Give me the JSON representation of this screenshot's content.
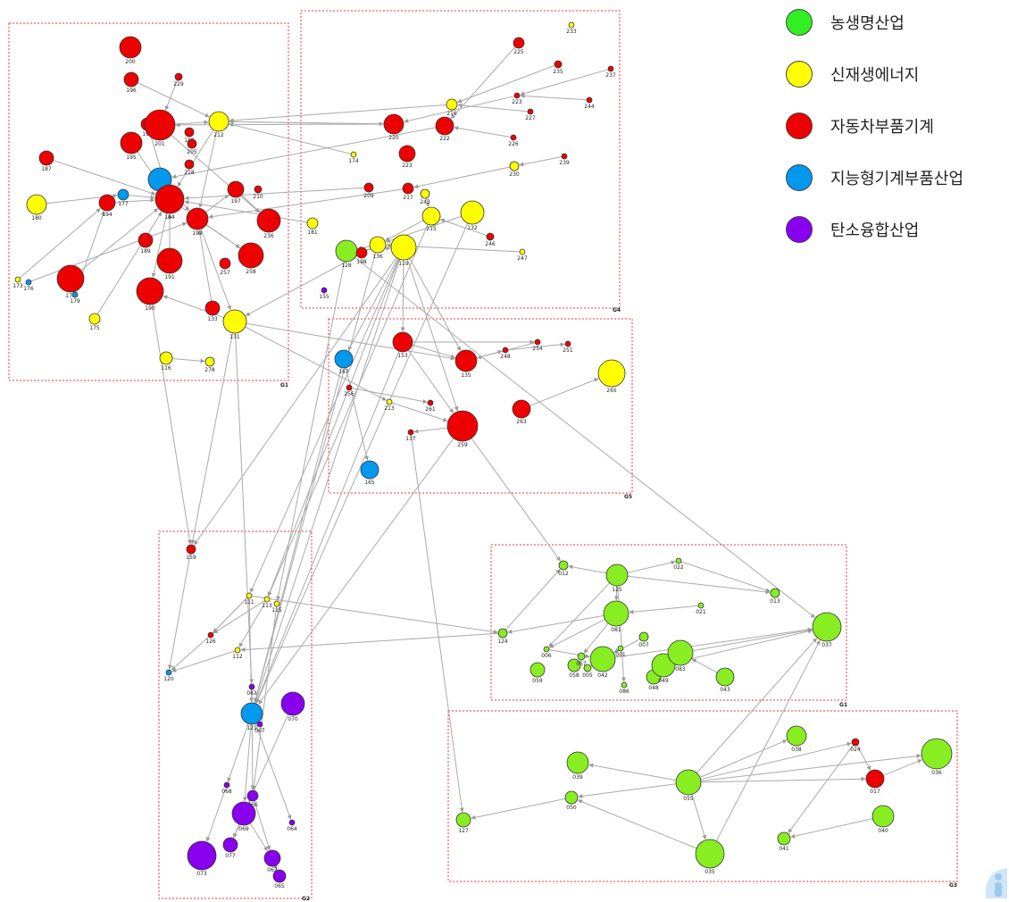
{
  "legend": [
    {
      "label": "농생명산업",
      "color": "#33ee22",
      "icon": "green-circle"
    },
    {
      "label": "신재생에너지",
      "color": "#ffff00",
      "icon": "yellow-circle"
    },
    {
      "label": "자동차부품기계",
      "color": "#ee0000",
      "icon": "red-circle"
    },
    {
      "label": "지능형기계부품산업",
      "color": "#0099ee",
      "icon": "blue-circle"
    },
    {
      "label": "탄소융합산업",
      "color": "#8800ee",
      "icon": "purple-circle"
    }
  ],
  "colors": {
    "agri": "#88ee22",
    "energy": "#ffff00",
    "auto": "#ee0000",
    "machine": "#0099ee",
    "carbon": "#8800ee",
    "edge": "#aaaaaa",
    "group_border": "#ff3333"
  },
  "groups": [
    {
      "label": "G1"
    },
    {
      "label": "G4"
    },
    {
      "label": "G5"
    },
    {
      "label": "G2"
    },
    {
      "label": "G1"
    },
    {
      "label": "G3"
    }
  ],
  "nodes": [
    {
      "id": "200",
      "cat": "auto"
    },
    {
      "id": "196",
      "cat": "auto"
    },
    {
      "id": "229",
      "cat": "auto"
    },
    {
      "id": "193",
      "cat": "auto"
    },
    {
      "id": "201",
      "cat": "auto"
    },
    {
      "id": "212",
      "cat": "energy"
    },
    {
      "id": "195",
      "cat": "auto"
    },
    {
      "id": "188",
      "cat": "auto"
    },
    {
      "id": "205",
      "cat": "auto"
    },
    {
      "id": "187",
      "cat": "auto"
    },
    {
      "id": "204",
      "cat": "machine"
    },
    {
      "id": "218",
      "cat": "auto"
    },
    {
      "id": "180",
      "cat": "energy"
    },
    {
      "id": "194",
      "cat": "auto"
    },
    {
      "id": "177",
      "cat": "machine"
    },
    {
      "id": "184",
      "cat": "auto"
    },
    {
      "id": "192",
      "cat": "auto"
    },
    {
      "id": "197",
      "cat": "auto"
    },
    {
      "id": "210",
      "cat": "auto"
    },
    {
      "id": "236",
      "cat": "auto"
    },
    {
      "id": "189",
      "cat": "auto"
    },
    {
      "id": "191",
      "cat": "auto"
    },
    {
      "id": "257",
      "cat": "auto"
    },
    {
      "id": "258",
      "cat": "auto"
    },
    {
      "id": "173",
      "cat": "energy"
    },
    {
      "id": "176",
      "cat": "machine"
    },
    {
      "id": "178",
      "cat": "auto"
    },
    {
      "id": "179",
      "cat": "machine"
    },
    {
      "id": "175",
      "cat": "energy"
    },
    {
      "id": "190",
      "cat": "auto"
    },
    {
      "id": "133",
      "cat": "auto"
    },
    {
      "id": "131",
      "cat": "energy"
    },
    {
      "id": "116",
      "cat": "energy"
    },
    {
      "id": "278",
      "cat": "energy"
    },
    {
      "id": "233",
      "cat": "energy"
    },
    {
      "id": "225",
      "cat": "auto"
    },
    {
      "id": "235",
      "cat": "auto"
    },
    {
      "id": "237",
      "cat": "auto"
    },
    {
      "id": "223",
      "cat": "auto"
    },
    {
      "id": "244",
      "cat": "auto"
    },
    {
      "id": "227",
      "cat": "auto"
    },
    {
      "id": "216",
      "cat": "energy"
    },
    {
      "id": "220",
      "cat": "auto"
    },
    {
      "id": "222",
      "cat": "auto"
    },
    {
      "id": "226",
      "cat": "auto"
    },
    {
      "id": "239",
      "cat": "auto"
    },
    {
      "id": "174",
      "cat": "energy"
    },
    {
      "id": "223b",
      "label": "223",
      "cat": "auto"
    },
    {
      "id": "230",
      "cat": "energy"
    },
    {
      "id": "209",
      "cat": "auto"
    },
    {
      "id": "217",
      "cat": "auto"
    },
    {
      "id": "243",
      "cat": "energy"
    },
    {
      "id": "132",
      "cat": "energy"
    },
    {
      "id": "215",
      "cat": "energy"
    },
    {
      "id": "181",
      "cat": "energy"
    },
    {
      "id": "246",
      "cat": "auto"
    },
    {
      "id": "247",
      "cat": "energy"
    },
    {
      "id": "128",
      "cat": "agri"
    },
    {
      "id": "198",
      "cat": "auto"
    },
    {
      "id": "136",
      "cat": "energy"
    },
    {
      "id": "119",
      "cat": "energy"
    },
    {
      "id": "155",
      "cat": "carbon"
    },
    {
      "id": "153",
      "cat": "auto"
    },
    {
      "id": "248",
      "cat": "auto"
    },
    {
      "id": "254",
      "cat": "auto"
    },
    {
      "id": "251",
      "cat": "auto"
    },
    {
      "id": "135",
      "cat": "auto"
    },
    {
      "id": "167",
      "cat": "machine"
    },
    {
      "id": "265",
      "cat": "energy"
    },
    {
      "id": "256",
      "cat": "auto"
    },
    {
      "id": "213",
      "cat": "energy"
    },
    {
      "id": "261",
      "cat": "auto"
    },
    {
      "id": "137",
      "cat": "auto"
    },
    {
      "id": "259",
      "cat": "auto"
    },
    {
      "id": "263",
      "cat": "auto"
    },
    {
      "id": "165",
      "cat": "machine"
    },
    {
      "id": "159",
      "cat": "auto"
    },
    {
      "id": "111",
      "cat": "energy"
    },
    {
      "id": "113",
      "cat": "energy"
    },
    {
      "id": "115",
      "cat": "energy"
    },
    {
      "id": "126",
      "cat": "auto"
    },
    {
      "id": "112",
      "cat": "energy"
    },
    {
      "id": "120",
      "cat": "machine"
    },
    {
      "id": "063",
      "cat": "carbon"
    },
    {
      "id": "070",
      "cat": "carbon"
    },
    {
      "id": "121",
      "cat": "machine"
    },
    {
      "id": "067",
      "cat": "carbon"
    },
    {
      "id": "068",
      "cat": "carbon"
    },
    {
      "id": "066",
      "cat": "carbon"
    },
    {
      "id": "069",
      "cat": "carbon"
    },
    {
      "id": "064",
      "cat": "carbon"
    },
    {
      "id": "077",
      "cat": "carbon"
    },
    {
      "id": "073",
      "cat": "carbon"
    },
    {
      "id": "062",
      "cat": "carbon"
    },
    {
      "id": "065",
      "cat": "carbon"
    },
    {
      "id": "012",
      "cat": "agri"
    },
    {
      "id": "125",
      "cat": "agri"
    },
    {
      "id": "022",
      "cat": "agri"
    },
    {
      "id": "013",
      "cat": "agri"
    },
    {
      "id": "021",
      "cat": "agri"
    },
    {
      "id": "081",
      "cat": "agri"
    },
    {
      "id": "124",
      "cat": "agri"
    },
    {
      "id": "006",
      "cat": "agri"
    },
    {
      "id": "007",
      "cat": "agri"
    },
    {
      "id": "001",
      "cat": "agri"
    },
    {
      "id": "037",
      "cat": "agri"
    },
    {
      "id": "059",
      "cat": "agri"
    },
    {
      "id": "058",
      "cat": "agri"
    },
    {
      "id": "057",
      "cat": "agri"
    },
    {
      "id": "005",
      "cat": "agri"
    },
    {
      "id": "042",
      "cat": "agri"
    },
    {
      "id": "086",
      "cat": "agri"
    },
    {
      "id": "048",
      "cat": "agri"
    },
    {
      "id": "049",
      "cat": "agri"
    },
    {
      "id": "083",
      "cat": "agri"
    },
    {
      "id": "043",
      "cat": "agri"
    },
    {
      "id": "038",
      "cat": "agri"
    },
    {
      "id": "024",
      "cat": "auto"
    },
    {
      "id": "039",
      "cat": "agri"
    },
    {
      "id": "036",
      "cat": "agri"
    },
    {
      "id": "055",
      "cat": "agri"
    },
    {
      "id": "017",
      "cat": "auto"
    },
    {
      "id": "050",
      "cat": "agri"
    },
    {
      "id": "127",
      "cat": "agri"
    },
    {
      "id": "040",
      "cat": "agri"
    },
    {
      "id": "041",
      "cat": "agri"
    },
    {
      "id": "035",
      "cat": "agri"
    }
  ]
}
